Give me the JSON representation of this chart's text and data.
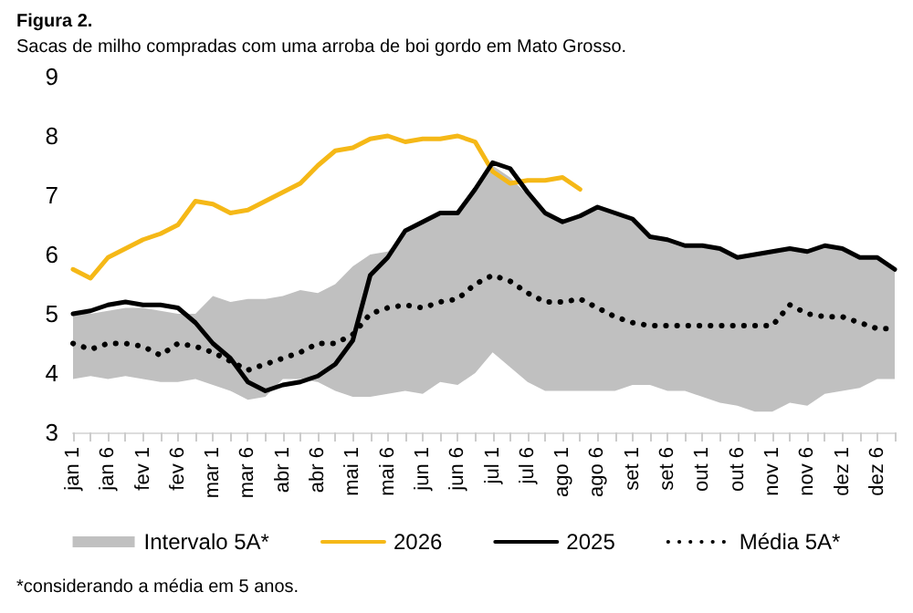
{
  "chart_data": {
    "type": "line",
    "title": "Figura 2.",
    "subtitle": "Sacas de milho compradas com uma arroba de boi gordo em Mato Grosso.",
    "annotations": [
      "Intervalo 5A*",
      "*considerando a média em 5 anos."
    ],
    "categories": [
      "jan 1",
      null,
      "jan 6",
      null,
      "fev 1",
      null,
      "fev 6",
      null,
      "mar 1",
      null,
      "mar 6",
      null,
      "abr 1",
      null,
      "abr 6",
      null,
      "mai 1",
      null,
      "mai 6",
      null,
      "jun 1",
      null,
      "jun 6",
      null,
      "jul 1",
      null,
      "jul 6",
      null,
      "ago 1",
      null,
      "ago 6",
      null,
      "set 1",
      null,
      "set 6",
      null,
      "out 1",
      null,
      "out 6",
      null,
      "nov 1",
      null,
      "nov 6",
      null,
      "dez 1",
      null,
      "dez 6",
      null
    ],
    "ylim": [
      3,
      9
    ],
    "yticks": [
      3,
      4,
      5,
      6,
      7,
      8,
      9
    ],
    "grid": false,
    "legend": "bottom",
    "marker": "none",
    "series": [
      {
        "name": "2026",
        "color": "#f5b817",
        "line_style": "solid",
        "values": [
          5.75,
          5.6,
          5.95,
          6.1,
          6.25,
          6.35,
          6.5,
          6.9,
          6.85,
          6.7,
          6.75,
          6.9,
          7.05,
          7.2,
          7.5,
          7.75,
          7.8,
          7.95,
          8.0,
          7.9,
          7.95,
          7.95,
          8.0,
          7.9,
          7.4,
          7.2,
          7.25,
          7.25,
          7.3,
          7.1,
          null,
          null,
          null,
          null,
          null,
          null,
          null,
          null,
          null,
          null,
          null,
          null,
          null,
          null,
          null,
          null,
          null,
          null
        ]
      },
      {
        "name": "2025",
        "color": "#000000",
        "line_style": "solid",
        "values": [
          5.0,
          5.05,
          5.15,
          5.2,
          5.15,
          5.15,
          5.1,
          4.85,
          4.5,
          4.25,
          3.85,
          3.7,
          3.8,
          3.85,
          3.95,
          4.15,
          4.55,
          5.65,
          5.95,
          6.4,
          6.55,
          6.7,
          6.7,
          7.1,
          7.55,
          7.45,
          7.05,
          6.7,
          6.55,
          6.65,
          6.8,
          6.7,
          6.6,
          6.3,
          6.25,
          6.15,
          6.15,
          6.1,
          5.95,
          6.0,
          6.05,
          6.1,
          6.05,
          6.15,
          6.1,
          5.95,
          5.95,
          5.75
        ]
      },
      {
        "name": "Média 5A*",
        "color": "#000000",
        "line_style": "dotted",
        "values": [
          4.5,
          4.4,
          4.5,
          4.5,
          4.45,
          4.3,
          4.5,
          4.45,
          4.35,
          4.2,
          4.05,
          4.15,
          4.25,
          4.35,
          4.5,
          4.5,
          4.65,
          5.0,
          5.1,
          5.15,
          5.1,
          5.2,
          5.25,
          5.5,
          5.65,
          5.55,
          5.35,
          5.2,
          5.2,
          5.25,
          5.1,
          4.95,
          4.85,
          4.8,
          4.8,
          4.8,
          4.8,
          4.8,
          4.8,
          4.8,
          4.8,
          5.15,
          5.0,
          4.95,
          4.95,
          4.85,
          4.75,
          4.75
        ],
        "lower": [
          3.9,
          3.95,
          3.9,
          3.95,
          3.9,
          3.85,
          3.85,
          3.9,
          3.8,
          3.7,
          3.55,
          3.6,
          3.9,
          3.9,
          3.85,
          3.7,
          3.6,
          3.6,
          3.65,
          3.7,
          3.65,
          3.85,
          3.8,
          4.0,
          4.35,
          4.1,
          3.85,
          3.7,
          3.7,
          3.7,
          3.7,
          3.7,
          3.8,
          3.8,
          3.7,
          3.7,
          3.6,
          3.5,
          3.45,
          3.35,
          3.35,
          3.5,
          3.45,
          3.65,
          3.7,
          3.75,
          3.9,
          3.9
        ],
        "upper": [
          5.0,
          5.0,
          5.05,
          5.1,
          5.1,
          5.05,
          5.0,
          5.0,
          5.3,
          5.2,
          5.25,
          5.25,
          5.3,
          5.4,
          5.35,
          5.5,
          5.8,
          6.0,
          6.05,
          6.35,
          6.55,
          6.7,
          6.7,
          7.05,
          7.5,
          7.3,
          7.0,
          6.7,
          6.55,
          6.65,
          6.8,
          6.7,
          6.6,
          6.3,
          6.25,
          6.15,
          6.15,
          6.1,
          5.95,
          6.0,
          6.05,
          6.1,
          6.05,
          6.15,
          6.1,
          5.95,
          5.95,
          5.75
        ]
      }
    ]
  }
}
